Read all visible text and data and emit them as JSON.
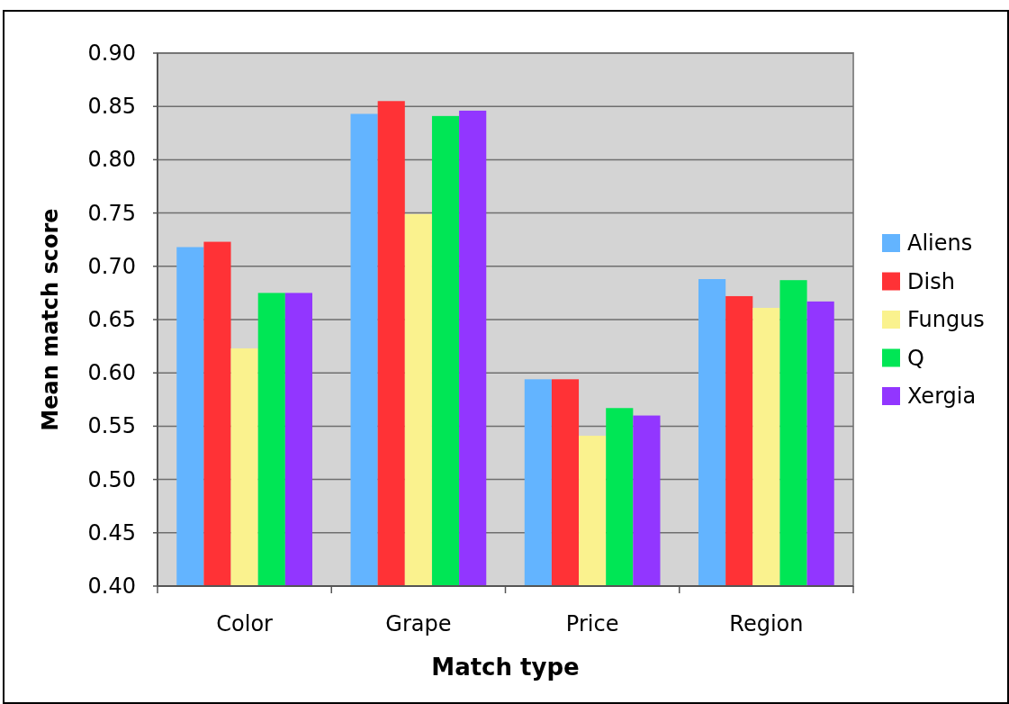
{
  "chart_data": {
    "type": "bar",
    "xlabel": "Match type",
    "ylabel": "Mean match score",
    "categories": [
      "Color",
      "Grape",
      "Price",
      "Region"
    ],
    "series": [
      {
        "name": "Aliens",
        "color": "#63b4ff",
        "values": [
          0.718,
          0.843,
          0.594,
          0.688
        ]
      },
      {
        "name": "Dish",
        "color": "#ff3236",
        "values": [
          0.723,
          0.855,
          0.594,
          0.672
        ]
      },
      {
        "name": "Fungus",
        "color": "#faf28e",
        "values": [
          0.623,
          0.749,
          0.541,
          0.661
        ]
      },
      {
        "name": "Q",
        "color": "#00e655",
        "values": [
          0.675,
          0.841,
          0.567,
          0.687
        ]
      },
      {
        "name": "Xergia",
        "color": "#9236ff",
        "values": [
          0.675,
          0.846,
          0.56,
          0.667
        ]
      }
    ],
    "ylim": [
      0.4,
      0.9
    ],
    "yticks": [
      {
        "value": 0.4,
        "label": "0.40"
      },
      {
        "value": 0.45,
        "label": "0.45"
      },
      {
        "value": 0.5,
        "label": "0.50"
      },
      {
        "value": 0.55,
        "label": "0.55"
      },
      {
        "value": 0.6,
        "label": "0.60"
      },
      {
        "value": 0.65,
        "label": "0.65"
      },
      {
        "value": 0.7,
        "label": "0.70"
      },
      {
        "value": 0.75,
        "label": "0.75"
      },
      {
        "value": 0.8,
        "label": "0.80"
      },
      {
        "value": 0.85,
        "label": "0.85"
      },
      {
        "value": 0.9,
        "label": "0.90"
      }
    ],
    "grid": "y",
    "legend": "right"
  }
}
